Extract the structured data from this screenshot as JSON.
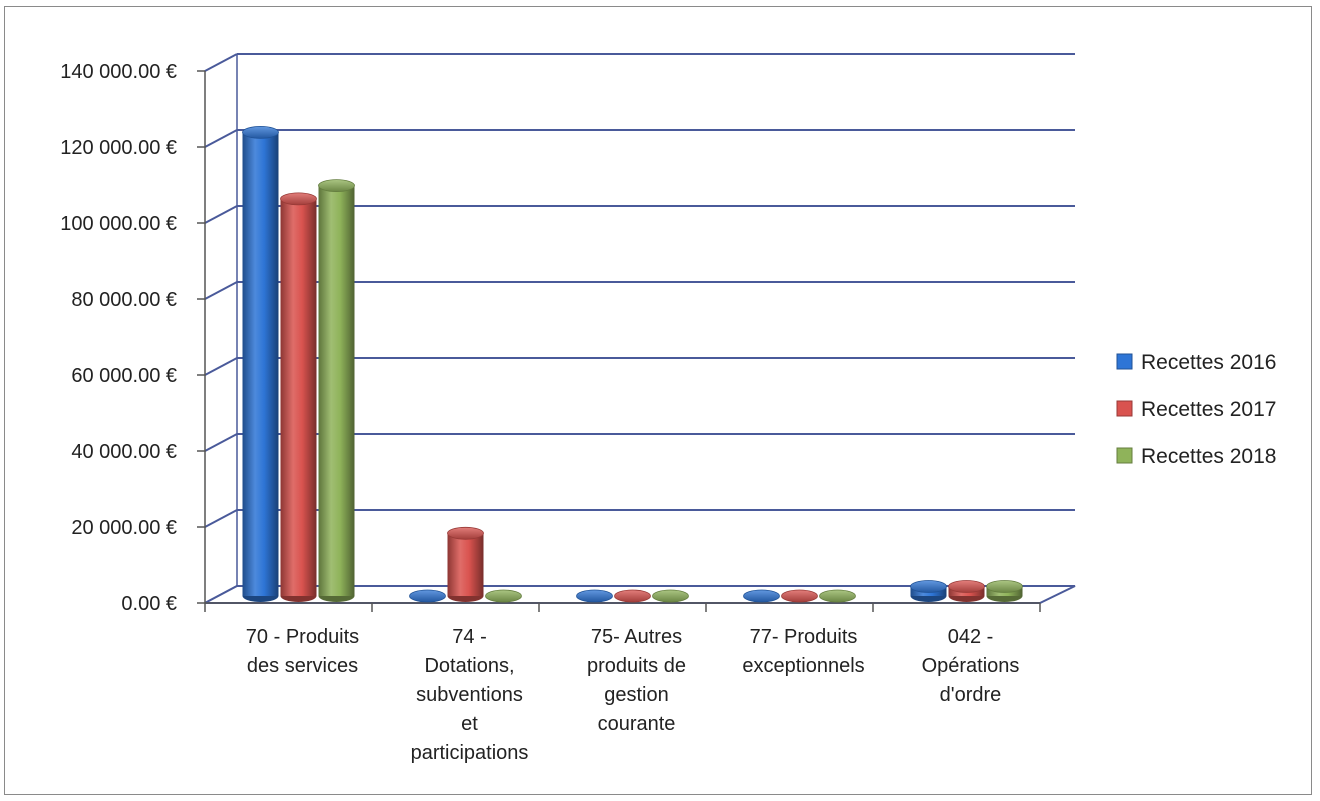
{
  "chart_data": {
    "type": "bar",
    "three_d": true,
    "title": "",
    "xlabel": "",
    "ylabel": "",
    "ylim": [
      0,
      140000
    ],
    "y_ticks": [
      0,
      20000,
      40000,
      60000,
      80000,
      100000,
      120000,
      140000
    ],
    "y_tick_labels": [
      "0.00 €",
      "20 000.00 €",
      "40 000.00 €",
      "60 000.00 €",
      "80 000.00 €",
      "100 000.00 €",
      "120 000.00 €",
      "140 000.00 €"
    ],
    "grid": true,
    "legend_position": "right",
    "categories": [
      "70 - Produits des services",
      "74 - Dotations, subventions et participations",
      "75- Autres produits de gestion courante",
      "77- Produits exceptionnels",
      "042 - Opérations d'ordre"
    ],
    "category_label_lines": [
      [
        "70 - Produits",
        "des services"
      ],
      [
        "74 -",
        "Dotations,",
        "subventions",
        "et",
        "participations"
      ],
      [
        "75- Autres",
        "produits de",
        "gestion",
        "courante"
      ],
      [
        "77- Produits",
        "exceptionnels"
      ],
      [
        "042 -",
        "Opérations",
        "d'ordre"
      ]
    ],
    "series": [
      {
        "name": "Recettes 2016",
        "color": "#2e75d6",
        "values": [
          122000,
          0,
          0,
          0,
          2500
        ]
      },
      {
        "name": "Recettes 2017",
        "color": "#d9534f",
        "values": [
          104500,
          16500,
          0,
          0,
          2500
        ]
      },
      {
        "name": "Recettes 2018",
        "color": "#8fb35a",
        "values": [
          108000,
          0,
          0,
          0,
          2500
        ]
      }
    ]
  }
}
